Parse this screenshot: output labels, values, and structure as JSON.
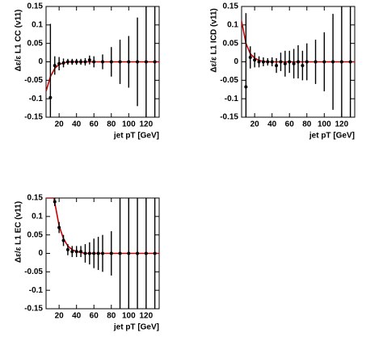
{
  "chart_data": [
    {
      "type": "errorbar",
      "ylabel": "Δε/ε L1 CC (v11)",
      "xlabel": "jet pT [GeV]",
      "xlim": [
        5,
        135
      ],
      "xticks": [
        20,
        40,
        60,
        80,
        100,
        120
      ],
      "ylim": [
        -0.15,
        0.15
      ],
      "yticks": [
        -0.15,
        -0.1,
        -0.05,
        0,
        0.05,
        0.1,
        0.15
      ],
      "color": "#000000",
      "x": [
        10,
        15,
        20,
        25,
        30,
        35,
        40,
        45,
        50,
        55,
        60,
        70,
        80,
        90,
        100,
        110,
        120,
        130
      ],
      "values": [
        -0.097,
        -0.01,
        -0.005,
        -0.003,
        0,
        0,
        0,
        0,
        0,
        0.005,
        0,
        0,
        0,
        0,
        0,
        0,
        0,
        0
      ],
      "errors": [
        0.2,
        0.025,
        0.018,
        0.012,
        0.008,
        0.008,
        0.008,
        0.008,
        0.01,
        0.012,
        0.015,
        0.02,
        0.04,
        0.06,
        0.07,
        0.12,
        0.16,
        0.2
      ],
      "fit": {
        "color": "#cc0000",
        "x": [
          5,
          10,
          15,
          20,
          25,
          30,
          135
        ],
        "values": [
          -0.08,
          -0.04,
          -0.018,
          -0.007,
          -0.003,
          0,
          0
        ]
      }
    },
    {
      "type": "errorbar",
      "ylabel": "Δε/ε L1 ICD (v11)",
      "xlabel": "jet pT [GeV]",
      "xlim": [
        5,
        135
      ],
      "xticks": [
        20,
        40,
        60,
        80,
        100,
        120
      ],
      "ylim": [
        -0.15,
        0.15
      ],
      "yticks": [
        -0.15,
        -0.1,
        -0.05,
        0,
        0.05,
        0.1,
        0.15
      ],
      "color": "#000000",
      "x": [
        10,
        15,
        20,
        25,
        30,
        35,
        40,
        45,
        50,
        55,
        60,
        65,
        70,
        75,
        80,
        90,
        100,
        110,
        120,
        130
      ],
      "values": [
        -0.068,
        0.012,
        0.005,
        0,
        0,
        0,
        0,
        -0.01,
        0,
        -0.005,
        0,
        -0.005,
        0,
        -0.01,
        0,
        0,
        0,
        0,
        0,
        0
      ],
      "errors": [
        0.2,
        0.03,
        0.02,
        0.015,
        0.012,
        0.01,
        0.012,
        0.02,
        0.025,
        0.035,
        0.03,
        0.04,
        0.045,
        0.04,
        0.05,
        0.06,
        0.08,
        0.13,
        0.2,
        0.2
      ],
      "fit": {
        "color": "#cc0000",
        "x": [
          5,
          10,
          15,
          20,
          25,
          30,
          35,
          135
        ],
        "values": [
          0.11,
          0.05,
          0.022,
          0.01,
          0.004,
          0.001,
          0,
          0
        ]
      }
    },
    {
      "type": "errorbar",
      "ylabel": "Δε/ε L1 EC (v11)",
      "xlabel": "jet pT [GeV]",
      "xlim": [
        5,
        135
      ],
      "xticks": [
        20,
        40,
        60,
        80,
        100,
        120
      ],
      "ylim": [
        -0.15,
        0.15
      ],
      "yticks": [
        -0.15,
        -0.1,
        -0.05,
        0,
        0.05,
        0.1,
        0.15
      ],
      "color": "#000000",
      "x": [
        15,
        20,
        25,
        30,
        35,
        40,
        45,
        50,
        55,
        60,
        65,
        70,
        80,
        90,
        100,
        110,
        120,
        130
      ],
      "values": [
        0.14,
        0.07,
        0.035,
        0.01,
        0.005,
        0.005,
        0.005,
        0,
        0,
        0,
        0,
        0,
        0,
        0,
        0,
        0,
        0,
        0
      ],
      "errors": [
        0.012,
        0.015,
        0.015,
        0.015,
        0.015,
        0.015,
        0.015,
        0.025,
        0.03,
        0.04,
        0.045,
        0.05,
        0.06,
        0.2,
        0.2,
        0.2,
        0.2,
        0.2
      ],
      "fit": {
        "color": "#cc0000",
        "x": [
          5,
          14,
          20,
          25,
          30,
          35,
          40,
          50,
          135
        ],
        "values": [
          0.15,
          0.15,
          0.075,
          0.04,
          0.02,
          0.01,
          0.005,
          0,
          0
        ]
      }
    }
  ]
}
